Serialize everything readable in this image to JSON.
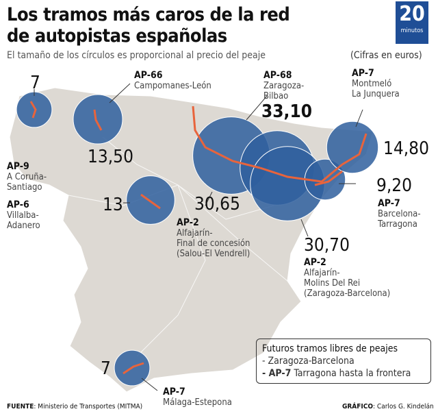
{
  "title": "Los tramos más caros de la red de autopistas españolas",
  "subtitle": "El tamaño de los círculos es proporcional al precio del peaje",
  "units": "(Cifras en euros)",
  "logo": {
    "number": "20",
    "word": "minutos",
    "color": "#1f4e96"
  },
  "colors": {
    "circle": "#2f5f9e",
    "road": "#e8643c",
    "land": "#ddd9d3"
  },
  "tolls": [
    {
      "code": "AP-9",
      "route": [
        "A Coruña-",
        "Santiago"
      ],
      "price": "7"
    },
    {
      "code": "AP-66",
      "route": [
        "Campomanes-León"
      ],
      "price": "13,50"
    },
    {
      "code": "AP-6",
      "route": [
        "Villalba-",
        "Adanero"
      ],
      "price": "13"
    },
    {
      "code": "AP-68",
      "route": [
        "Zaragoza-",
        "Bilbao"
      ],
      "price": "33,10"
    },
    {
      "code": "AP-2",
      "route": [
        "Alfajarín-",
        "Final de concesión",
        "(Salou-El Vendrell)"
      ],
      "price": "30,65"
    },
    {
      "code": "AP-2",
      "route": [
        "Alfajarín-",
        "Molins Del Rei",
        "(Zaragoza-Barcelona)"
      ],
      "price": "30,70"
    },
    {
      "code": "AP-7",
      "route": [
        "Barcelona-",
        "Tarragona"
      ],
      "price": "9,20"
    },
    {
      "code": "AP-7",
      "route": [
        "Montmeló",
        "La Junquera"
      ],
      "price": "14,80"
    },
    {
      "code": "AP-7",
      "route": [
        "Málaga-Estepona"
      ],
      "price": "7"
    }
  ],
  "legend": {
    "title": "Futuros tramos libres de peajes",
    "items": [
      "- Zaragoza-Barcelona"
    ],
    "item2_code": "- AP-7",
    "item2_text": " Tarragona hasta la frontera"
  },
  "source": {
    "label": "FUENTE",
    "text": ": Ministerio de Transportes (MITMA)"
  },
  "credit": {
    "label": "GRÁFICO",
    "text": ": Carlos G. Kindelán"
  }
}
